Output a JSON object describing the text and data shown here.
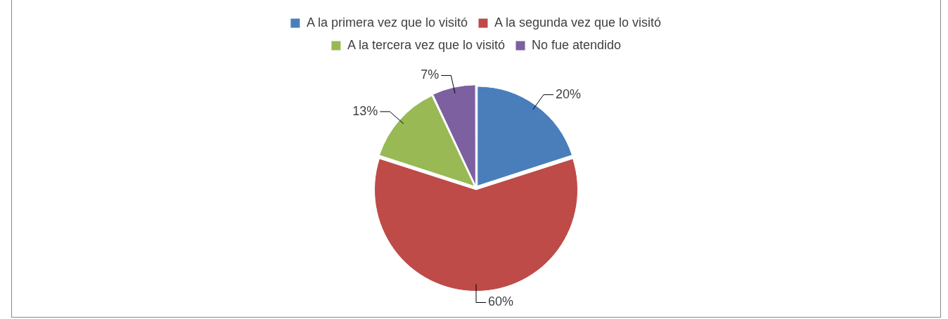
{
  "chart_data": {
    "type": "pie",
    "categories": [
      "A la primera vez que lo visitó",
      "A la segunda vez que lo visitó",
      "A la tercera vez que lo visitó",
      "No fue atendido"
    ],
    "values": [
      20,
      60,
      13,
      7
    ],
    "colors": [
      "#4a7ebb",
      "#be4b48",
      "#98b954",
      "#7d60a0"
    ],
    "value_labels": [
      "20%",
      "60%",
      "13%",
      "7%"
    ],
    "legend": "top"
  }
}
